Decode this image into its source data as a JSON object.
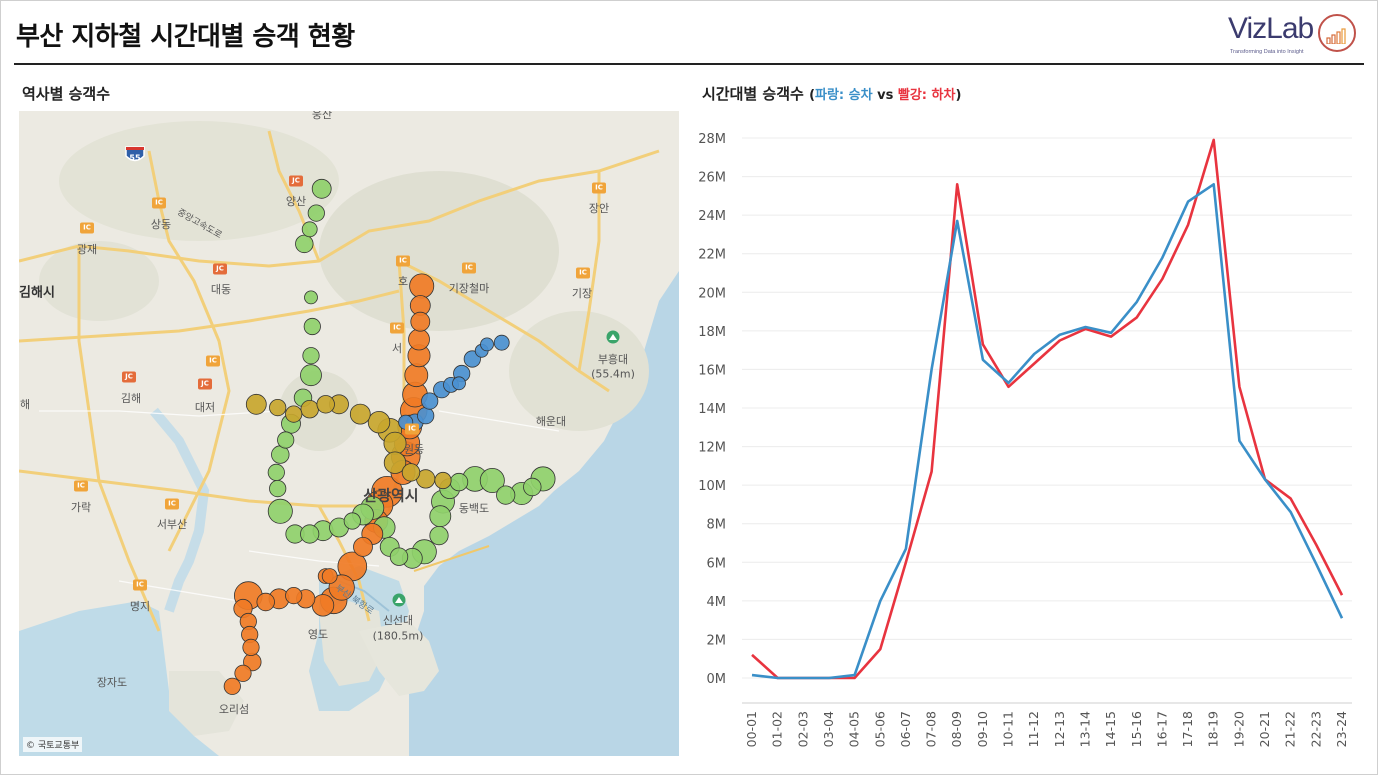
{
  "header": {
    "title": "부산 지하철 시간대별 승객 현황",
    "logo_text": "VizLab",
    "logo_tagline": "Transforming Data into Insight"
  },
  "map_panel": {
    "title": "역사별 승객수",
    "copyright": "© 국토교통부",
    "labels": {
      "yangsan": "양산",
      "sangdong": "상동",
      "gwangjae": "광재",
      "gimhae_si": "김해시",
      "daedong": "대동",
      "gimhae": "김해",
      "daejeo": "대저",
      "hae": "해",
      "giho": "기장철마",
      "gijang": "기장",
      "changan": "장안",
      "buheungdae": "부흥대",
      "buheungdae_h": "(55.4m)",
      "haeundae": "해운대",
      "wondong": "원동",
      "busan_city": "산광역시",
      "seo": "서",
      "ho": "호",
      "garak": "가락",
      "seobusan": "서부산",
      "myeongji": "명지",
      "yeongdo": "영도",
      "sinseondae": "신선대",
      "sinseondae_h": "(180.5m)",
      "jangjado": "장자도",
      "orisum": "오리섬",
      "dongbaekdo": "동백도",
      "busan_bridge": "부산 북항로",
      "hwy55": "55",
      "namhae": "중앙고속도로",
      "top_city": "웅산"
    },
    "ic_label": "IC",
    "jc_label": "JC",
    "line_colors": {
      "line1": "#f07b25",
      "line2": "#8fd06b",
      "line3": "#c8a62e",
      "line4": "#4a90d0"
    },
    "stations": [
      {
        "line": "line1",
        "lat": 35.265,
        "lng": 129.092,
        "riders": 40
      },
      {
        "line": "line1",
        "lat": 35.253,
        "lng": 129.091,
        "riders": 25
      },
      {
        "line": "line1",
        "lat": 35.243,
        "lng": 129.091,
        "riders": 22
      },
      {
        "line": "line1",
        "lat": 35.232,
        "lng": 129.09,
        "riders": 28
      },
      {
        "line": "line1",
        "lat": 35.222,
        "lng": 129.09,
        "riders": 32
      },
      {
        "line": "line1",
        "lat": 35.21,
        "lng": 129.088,
        "riders": 35
      },
      {
        "line": "line1",
        "lat": 35.198,
        "lng": 129.087,
        "riders": 42
      },
      {
        "line": "line1",
        "lat": 35.188,
        "lng": 129.086,
        "riders": 50
      },
      {
        "line": "line1",
        "lat": 35.178,
        "lng": 129.083,
        "riders": 38
      },
      {
        "line": "line1",
        "lat": 35.168,
        "lng": 129.081,
        "riders": 45
      },
      {
        "line": "line1",
        "lat": 35.16,
        "lng": 129.08,
        "riders": 60
      },
      {
        "line": "line1",
        "lat": 35.15,
        "lng": 129.078,
        "riders": 40
      },
      {
        "line": "line1",
        "lat": 35.138,
        "lng": 129.066,
        "riders": 70
      },
      {
        "line": "line1",
        "lat": 35.13,
        "lng": 129.06,
        "riders": 55
      },
      {
        "line": "line1",
        "lat": 35.12,
        "lng": 129.058,
        "riders": 35
      },
      {
        "line": "line1",
        "lat": 35.112,
        "lng": 129.055,
        "riders": 28
      },
      {
        "line": "line1",
        "lat": 35.104,
        "lng": 129.048,
        "riders": 22
      },
      {
        "line": "line1",
        "lat": 35.092,
        "lng": 129.04,
        "riders": 60
      },
      {
        "line": "line1",
        "lat": 35.079,
        "lng": 129.032,
        "riders": 45
      },
      {
        "line": "line1",
        "lat": 35.071,
        "lng": 129.026,
        "riders": 50
      },
      {
        "line": "line1",
        "lat": 35.068,
        "lng": 129.018,
        "riders": 30
      },
      {
        "line": "line1",
        "lat": 35.072,
        "lng": 129.005,
        "riders": 20
      },
      {
        "line": "line1",
        "lat": 35.074,
        "lng": 128.996,
        "riders": 15
      },
      {
        "line": "line1",
        "lat": 35.072,
        "lng": 128.985,
        "riders": 25
      },
      {
        "line": "line1",
        "lat": 35.07,
        "lng": 128.975,
        "riders": 18
      },
      {
        "line": "line1",
        "lat": 35.074,
        "lng": 128.962,
        "riders": 55
      },
      {
        "line": "line1",
        "lat": 35.066,
        "lng": 128.958,
        "riders": 20
      },
      {
        "line": "line1",
        "lat": 35.058,
        "lng": 128.962,
        "riders": 15
      },
      {
        "line": "line1",
        "lat": 35.05,
        "lng": 128.963,
        "riders": 15
      },
      {
        "line": "line1",
        "lat": 35.042,
        "lng": 128.964,
        "riders": 15
      },
      {
        "line": "line1",
        "lat": 35.033,
        "lng": 128.965,
        "riders": 18
      },
      {
        "line": "line1",
        "lat": 35.026,
        "lng": 128.958,
        "riders": 15
      },
      {
        "line": "line1",
        "lat": 35.018,
        "lng": 128.95,
        "riders": 15
      },
      {
        "line": "line1",
        "lat": 35.086,
        "lng": 129.02,
        "riders": 12
      },
      {
        "line": "line1",
        "lat": 35.086,
        "lng": 129.023,
        "riders": 12
      },
      {
        "line": "line2",
        "lat": 35.325,
        "lng": 129.017,
        "riders": 22
      },
      {
        "line": "line2",
        "lat": 35.31,
        "lng": 129.013,
        "riders": 15
      },
      {
        "line": "line2",
        "lat": 35.3,
        "lng": 129.008,
        "riders": 12
      },
      {
        "line": "line2",
        "lat": 35.291,
        "lng": 129.004,
        "riders": 18
      },
      {
        "line": "line2",
        "lat": 35.258,
        "lng": 129.009,
        "riders": 8
      },
      {
        "line": "line2",
        "lat": 35.24,
        "lng": 129.01,
        "riders": 15
      },
      {
        "line": "line2",
        "lat": 35.222,
        "lng": 129.009,
        "riders": 15
      },
      {
        "line": "line2",
        "lat": 35.21,
        "lng": 129.009,
        "riders": 28
      },
      {
        "line": "line2",
        "lat": 35.196,
        "lng": 129.003,
        "riders": 18
      },
      {
        "line": "line2",
        "lat": 35.18,
        "lng": 128.994,
        "riders": 22
      },
      {
        "line": "line2",
        "lat": 35.17,
        "lng": 128.99,
        "riders": 15
      },
      {
        "line": "line2",
        "lat": 35.161,
        "lng": 128.986,
        "riders": 18
      },
      {
        "line": "line2",
        "lat": 35.15,
        "lng": 128.983,
        "riders": 15
      },
      {
        "line": "line2",
        "lat": 35.14,
        "lng": 128.984,
        "riders": 15
      },
      {
        "line": "line2",
        "lat": 35.126,
        "lng": 128.986,
        "riders": 40
      },
      {
        "line": "line2",
        "lat": 35.112,
        "lng": 128.997,
        "riders": 20
      },
      {
        "line": "line2",
        "lat": 35.112,
        "lng": 129.008,
        "riders": 20
      },
      {
        "line": "line2",
        "lat": 35.114,
        "lng": 129.018,
        "riders": 25
      },
      {
        "line": "line2",
        "lat": 35.116,
        "lng": 129.03,
        "riders": 22
      },
      {
        "line": "line2",
        "lat": 35.12,
        "lng": 129.04,
        "riders": 15
      },
      {
        "line": "line2",
        "lat": 35.124,
        "lng": 129.048,
        "riders": 28
      },
      {
        "line": "line2",
        "lat": 35.128,
        "lng": 129.055,
        "riders": 35
      },
      {
        "line": "line2",
        "lat": 35.116,
        "lng": 129.064,
        "riders": 30
      },
      {
        "line": "line2",
        "lat": 35.104,
        "lng": 129.068,
        "riders": 22
      },
      {
        "line": "line2",
        "lat": 35.098,
        "lng": 129.075,
        "riders": 18
      },
      {
        "line": "line2",
        "lat": 35.097,
        "lng": 129.085,
        "riders": 25
      },
      {
        "line": "line2",
        "lat": 35.101,
        "lng": 129.094,
        "riders": 40
      },
      {
        "line": "line2",
        "lat": 35.111,
        "lng": 129.105,
        "riders": 20
      },
      {
        "line": "line2",
        "lat": 35.123,
        "lng": 129.106,
        "riders": 28
      },
      {
        "line": "line2",
        "lat": 35.132,
        "lng": 129.108,
        "riders": 35
      },
      {
        "line": "line2",
        "lat": 35.14,
        "lng": 129.113,
        "riders": 25
      },
      {
        "line": "line2",
        "lat": 35.144,
        "lng": 129.12,
        "riders": 18
      },
      {
        "line": "line2",
        "lat": 35.146,
        "lng": 129.132,
        "riders": 42
      },
      {
        "line": "line2",
        "lat": 35.145,
        "lng": 129.145,
        "riders": 40
      },
      {
        "line": "line2",
        "lat": 35.136,
        "lng": 129.155,
        "riders": 20
      },
      {
        "line": "line2",
        "lat": 35.137,
        "lng": 129.167,
        "riders": 32
      },
      {
        "line": "line2",
        "lat": 35.141,
        "lng": 129.175,
        "riders": 18
      },
      {
        "line": "line2",
        "lat": 35.146,
        "lng": 129.183,
        "riders": 40
      },
      {
        "line": "line3",
        "lat": 35.192,
        "lng": 128.968,
        "riders": 25
      },
      {
        "line": "line3",
        "lat": 35.19,
        "lng": 128.984,
        "riders": 15
      },
      {
        "line": "line3",
        "lat": 35.186,
        "lng": 128.996,
        "riders": 15
      },
      {
        "line": "line3",
        "lat": 35.189,
        "lng": 129.008,
        "riders": 18
      },
      {
        "line": "line3",
        "lat": 35.192,
        "lng": 129.02,
        "riders": 18
      },
      {
        "line": "line3",
        "lat": 35.192,
        "lng": 129.03,
        "riders": 22
      },
      {
        "line": "line3",
        "lat": 35.186,
        "lng": 129.046,
        "riders": 25
      },
      {
        "line": "line3",
        "lat": 35.181,
        "lng": 129.06,
        "riders": 30
      },
      {
        "line": "line3",
        "lat": 35.176,
        "lng": 129.068,
        "riders": 38
      },
      {
        "line": "line3",
        "lat": 35.168,
        "lng": 129.072,
        "riders": 32
      },
      {
        "line": "line3",
        "lat": 35.156,
        "lng": 129.072,
        "riders": 30
      },
      {
        "line": "line3",
        "lat": 35.15,
        "lng": 129.084,
        "riders": 18
      },
      {
        "line": "line3",
        "lat": 35.146,
        "lng": 129.095,
        "riders": 20
      },
      {
        "line": "line3",
        "lat": 35.145,
        "lng": 129.108,
        "riders": 15
      },
      {
        "line": "line4",
        "lat": 35.181,
        "lng": 129.08,
        "riders": 10
      },
      {
        "line": "line4",
        "lat": 35.181,
        "lng": 129.087,
        "riders": 15
      },
      {
        "line": "line4",
        "lat": 35.185,
        "lng": 129.095,
        "riders": 15
      },
      {
        "line": "line4",
        "lat": 35.194,
        "lng": 129.098,
        "riders": 15
      },
      {
        "line": "line4",
        "lat": 35.201,
        "lng": 129.107,
        "riders": 15
      },
      {
        "line": "line4",
        "lat": 35.204,
        "lng": 129.114,
        "riders": 12
      },
      {
        "line": "line4",
        "lat": 35.205,
        "lng": 129.12,
        "riders": 8
      },
      {
        "line": "line4",
        "lat": 35.211,
        "lng": 129.122,
        "riders": 15
      },
      {
        "line": "line4",
        "lat": 35.22,
        "lng": 129.13,
        "riders": 15
      },
      {
        "line": "line4",
        "lat": 35.225,
        "lng": 129.137,
        "riders": 8
      },
      {
        "line": "line4",
        "lat": 35.229,
        "lng": 129.141,
        "riders": 8
      },
      {
        "line": "line4",
        "lat": 35.23,
        "lng": 129.152,
        "riders": 12
      }
    ]
  },
  "chart_panel": {
    "title": "시간대별 승객수",
    "legend_open": "(",
    "legend_blue": "파랑: 승차",
    "legend_vs": " vs ",
    "legend_red": "빨강: 하차",
    "legend_close": ")"
  },
  "chart_data": {
    "type": "line",
    "x": [
      "00-01",
      "01-02",
      "02-03",
      "03-04",
      "04-05",
      "05-06",
      "06-07",
      "07-08",
      "08-09",
      "09-10",
      "10-11",
      "11-12",
      "12-13",
      "13-14",
      "14-15",
      "15-16",
      "16-17",
      "17-18",
      "18-19",
      "19-20",
      "20-21",
      "21-22",
      "22-23",
      "23-24"
    ],
    "ylim": [
      0,
      28000000
    ],
    "yticks": [
      0,
      2000000,
      4000000,
      6000000,
      8000000,
      10000000,
      12000000,
      14000000,
      16000000,
      18000000,
      20000000,
      22000000,
      24000000,
      26000000,
      28000000
    ],
    "ytick_labels": [
      "0M",
      "2M",
      "4M",
      "6M",
      "8M",
      "10M",
      "12M",
      "14M",
      "16M",
      "18M",
      "20M",
      "22M",
      "24M",
      "26M",
      "28M"
    ],
    "series": [
      {
        "name": "승차",
        "color": "#3a8fc8",
        "values": [
          150000,
          0,
          0,
          0,
          150000,
          4000000,
          6700000,
          16000000,
          23700000,
          16500000,
          15300000,
          16800000,
          17800000,
          18200000,
          17900000,
          19500000,
          21800000,
          24700000,
          25600000,
          12300000,
          10300000,
          8600000,
          5900000,
          3100000
        ]
      },
      {
        "name": "하차",
        "color": "#e8343f",
        "values": [
          1200000,
          0,
          0,
          0,
          0,
          1500000,
          6000000,
          10700000,
          25600000,
          17300000,
          15100000,
          16300000,
          17500000,
          18100000,
          17700000,
          18700000,
          20700000,
          23500000,
          27900000,
          15100000,
          10300000,
          9300000,
          6900000,
          4300000
        ]
      }
    ]
  }
}
